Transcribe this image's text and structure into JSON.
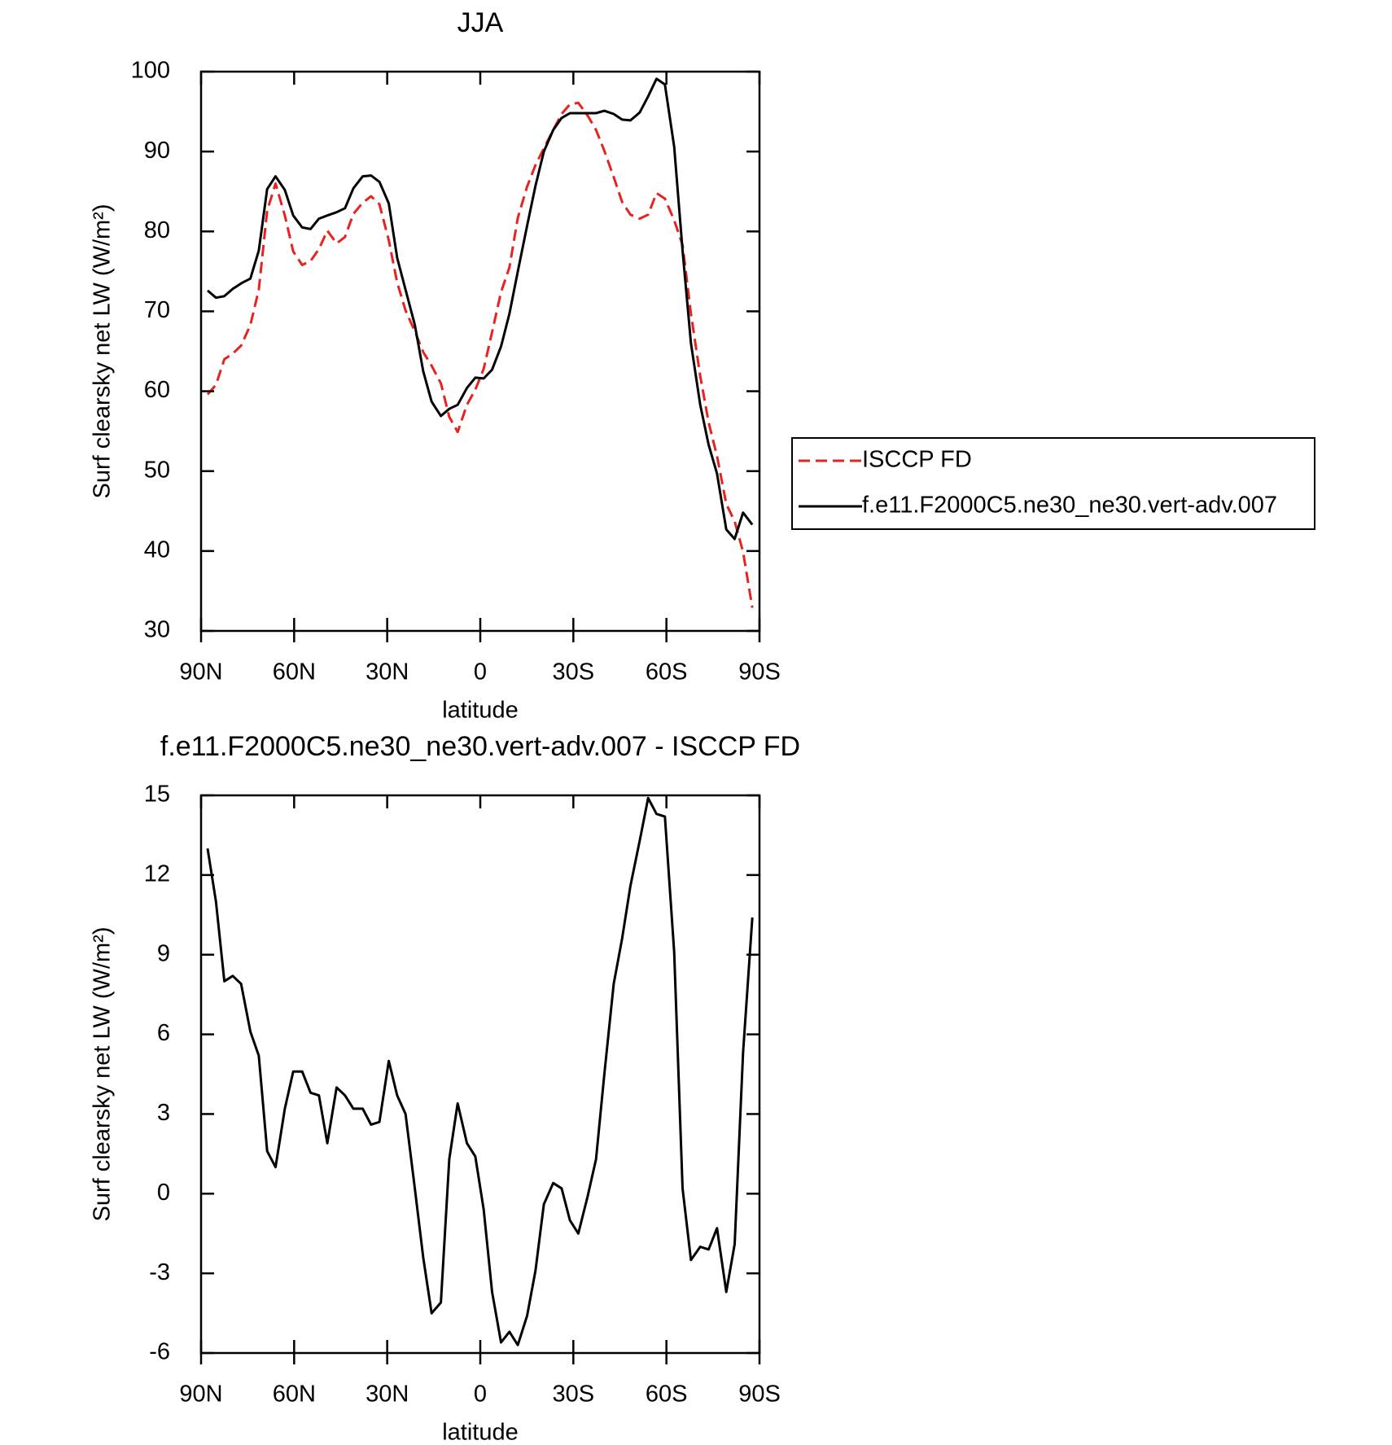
{
  "chart_data": [
    {
      "type": "line",
      "title": "JJA",
      "xlabel": "latitude",
      "ylabel": "Surf clearsky net LW (W/m²)",
      "x": [
        87.9,
        85.2,
        82.5,
        79.8,
        77.1,
        74.1,
        71.4,
        68.7,
        66.0,
        63.0,
        60.3,
        57.4,
        54.7,
        52.0,
        49.3,
        46.3,
        43.6,
        40.9,
        37.9,
        35.2,
        32.5,
        29.5,
        26.8,
        24.1,
        21.1,
        18.4,
        15.7,
        12.7,
        10.0,
        7.3,
        4.3,
        1.6,
        -1.1,
        -3.8,
        -6.7,
        -9.4,
        -12.1,
        -15.1,
        -17.8,
        -20.5,
        -23.5,
        -26.2,
        -28.9,
        -31.6,
        -34.6,
        -37.3,
        -40.0,
        -43.0,
        -45.7,
        -48.4,
        -51.4,
        -54.1,
        -56.8,
        -59.5,
        -62.5,
        -65.2,
        -67.9,
        -70.9,
        -73.6,
        -76.3,
        -79.3,
        -82.0,
        -84.7,
        -87.7
      ],
      "series": [
        {
          "name": "ISCCP FD",
          "color": "#e8221f",
          "line_style": "dashed",
          "values": [
            59.6,
            60.8,
            64.0,
            64.7,
            65.7,
            68.3,
            72.7,
            82.6,
            86.0,
            82.0,
            77.5,
            75.8,
            76.3,
            77.8,
            80.1,
            78.5,
            79.3,
            82.2,
            83.6,
            84.4,
            83.4,
            78.9,
            73.6,
            70.1,
            67.5,
            64.9,
            63.2,
            61.0,
            56.8,
            54.9,
            58.3,
            60.2,
            62.8,
            67.4,
            72.4,
            75.5,
            81.7,
            85.6,
            88.3,
            90.4,
            92.7,
            94.7,
            95.9,
            96.1,
            94.5,
            92.7,
            90.1,
            86.8,
            83.7,
            82.1,
            81.6,
            82.1,
            84.8,
            84.1,
            81.4,
            78.3,
            69.7,
            61.9,
            56.1,
            51.9,
            45.9,
            43.7,
            39.9,
            32.9
          ]
        },
        {
          "name": "f.e11.F2000C5.ne30_ne30.vert-adv.007",
          "color": "#000000",
          "line_style": "solid",
          "values": [
            72.6,
            71.7,
            71.9,
            72.8,
            73.5,
            74.1,
            77.6,
            85.3,
            86.9,
            85.2,
            82.0,
            80.5,
            80.3,
            81.6,
            82.0,
            82.4,
            82.9,
            85.4,
            86.9,
            87.0,
            86.2,
            83.5,
            76.7,
            72.7,
            68.3,
            62.5,
            58.7,
            56.9,
            57.8,
            58.3,
            60.4,
            61.7,
            61.6,
            62.7,
            65.6,
            69.7,
            75.0,
            80.7,
            85.7,
            90.0,
            92.7,
            94.2,
            94.8,
            94.8,
            94.8,
            94.8,
            95.1,
            94.7,
            94.0,
            93.9,
            94.9,
            96.9,
            99.1,
            98.4,
            90.6,
            77.6,
            66.0,
            58.3,
            53.3,
            49.7,
            42.7,
            41.5,
            44.8,
            43.3
          ]
        }
      ],
      "xlim": [
        90,
        -90
      ],
      "xticks": [
        {
          "value": 90,
          "label": "90N"
        },
        {
          "value": 60,
          "label": "60N"
        },
        {
          "value": 30,
          "label": "30N"
        },
        0,
        {
          "value": -30,
          "label": "30S"
        },
        {
          "value": -60,
          "label": "60S"
        },
        {
          "value": -90,
          "label": "90S"
        }
      ],
      "ylim": [
        30,
        100
      ],
      "yticks": [
        30,
        40,
        50,
        60,
        70,
        80,
        90,
        100
      ],
      "legend": "right"
    },
    {
      "type": "line",
      "title": "f.e11.F2000C5.ne30_ne30.vert-adv.007 - ISCCP FD",
      "xlabel": "latitude",
      "ylabel": "Surf clearsky net LW (W/m²)",
      "x": [
        87.9,
        85.2,
        82.5,
        79.8,
        77.1,
        74.1,
        71.4,
        68.7,
        66.0,
        63.0,
        60.3,
        57.4,
        54.7,
        52.0,
        49.3,
        46.3,
        43.6,
        40.9,
        37.9,
        35.2,
        32.5,
        29.5,
        26.8,
        24.1,
        21.1,
        18.4,
        15.7,
        12.7,
        10.0,
        7.3,
        4.3,
        1.6,
        -1.1,
        -3.8,
        -6.7,
        -9.4,
        -12.1,
        -15.1,
        -17.8,
        -20.5,
        -23.5,
        -26.2,
        -28.9,
        -31.6,
        -34.6,
        -37.3,
        -40.0,
        -43.0,
        -45.7,
        -48.4,
        -51.4,
        -54.1,
        -56.8,
        -59.5,
        -62.5,
        -65.2,
        -67.9,
        -70.9,
        -73.6,
        -76.3,
        -79.3,
        -82.0,
        -84.7,
        -87.7
      ],
      "series": [
        {
          "color": "#000000",
          "line_style": "solid",
          "values": [
            13.0,
            11.0,
            8.0,
            8.2,
            7.9,
            6.1,
            5.2,
            1.6,
            1.0,
            3.2,
            4.6,
            4.6,
            3.8,
            3.7,
            1.9,
            4.0,
            3.7,
            3.2,
            3.2,
            2.6,
            2.7,
            5.0,
            3.7,
            3.0,
            0.2,
            -2.4,
            -4.5,
            -4.1,
            1.3,
            3.4,
            1.9,
            1.4,
            -0.6,
            -3.7,
            -5.6,
            -5.2,
            -5.7,
            -4.6,
            -2.9,
            -0.4,
            0.4,
            0.2,
            -1.0,
            -1.5,
            -0.1,
            1.3,
            4.5,
            7.9,
            9.6,
            11.6,
            13.3,
            14.9,
            14.3,
            14.2,
            9.1,
            0.2,
            -2.5,
            -2.0,
            -2.1,
            -1.3,
            -3.7,
            -1.9,
            5.3,
            10.4
          ]
        }
      ],
      "xlim": [
        90,
        -90
      ],
      "xticks": [
        {
          "value": 90,
          "label": "90N"
        },
        {
          "value": 60,
          "label": "60N"
        },
        {
          "value": 30,
          "label": "30N"
        },
        0,
        {
          "value": -30,
          "label": "30S"
        },
        {
          "value": -60,
          "label": "60S"
        },
        {
          "value": -90,
          "label": "90S"
        }
      ],
      "ylim": [
        -6,
        15
      ],
      "yticks": [
        -6,
        -3,
        0,
        3,
        6,
        9,
        12,
        15
      ]
    }
  ]
}
